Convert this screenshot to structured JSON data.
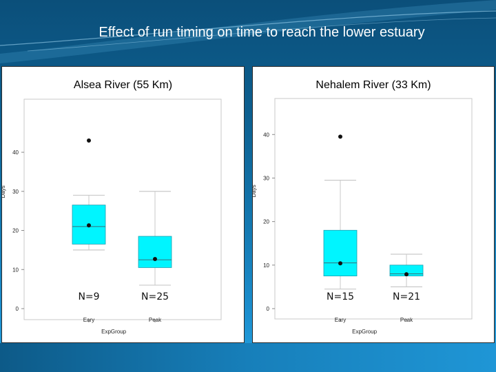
{
  "slide": {
    "title": "Effect of run timing on time to reach the lower estuary"
  },
  "colors": {
    "box_fill": "#00f5ff",
    "box_stroke": "#1a9fb0",
    "whisker": "#c9c9c9",
    "plot_bg": "#ffffff"
  },
  "chart_data": [
    {
      "type": "box",
      "title": "Alsea River (55 Km)",
      "xlabel": "ExpGroup",
      "ylabel": "Days",
      "ylim": [
        0,
        46
      ],
      "yticks": [
        0,
        10,
        20,
        30,
        40
      ],
      "categories": [
        "Eary",
        "Peak"
      ],
      "boxes": [
        {
          "category": "Eary",
          "whisker_low": 15,
          "q1": 16.5,
          "median": 21,
          "q3": 26.5,
          "whisker_high": 29,
          "mean": 21.3,
          "outliers": [
            43
          ],
          "n_label": "N=9"
        },
        {
          "category": "Peak",
          "whisker_low": 6,
          "q1": 10.5,
          "median": 12.5,
          "q3": 18.5,
          "whisker_high": 30,
          "mean": 12.7,
          "outliers": [],
          "n_label": "N=25"
        }
      ]
    },
    {
      "type": "box",
      "title": "Nehalem River (33 Km)",
      "xlabel": "ExpGroup",
      "ylabel": "Days",
      "ylim": [
        0,
        44
      ],
      "yticks": [
        0,
        10,
        20,
        30,
        40
      ],
      "categories": [
        "Eary",
        "Peak"
      ],
      "boxes": [
        {
          "category": "Eary",
          "whisker_low": 4.5,
          "q1": 7.5,
          "median": 10.5,
          "q3": 18,
          "whisker_high": 29.5,
          "mean": 10.4,
          "outliers": [
            39.5
          ],
          "n_label": "N=15"
        },
        {
          "category": "Peak",
          "whisker_low": 5,
          "q1": 7.5,
          "median": 8,
          "q3": 10,
          "whisker_high": 12.5,
          "mean": 7.9,
          "outliers": [],
          "n_label": "N=21"
        }
      ]
    }
  ]
}
